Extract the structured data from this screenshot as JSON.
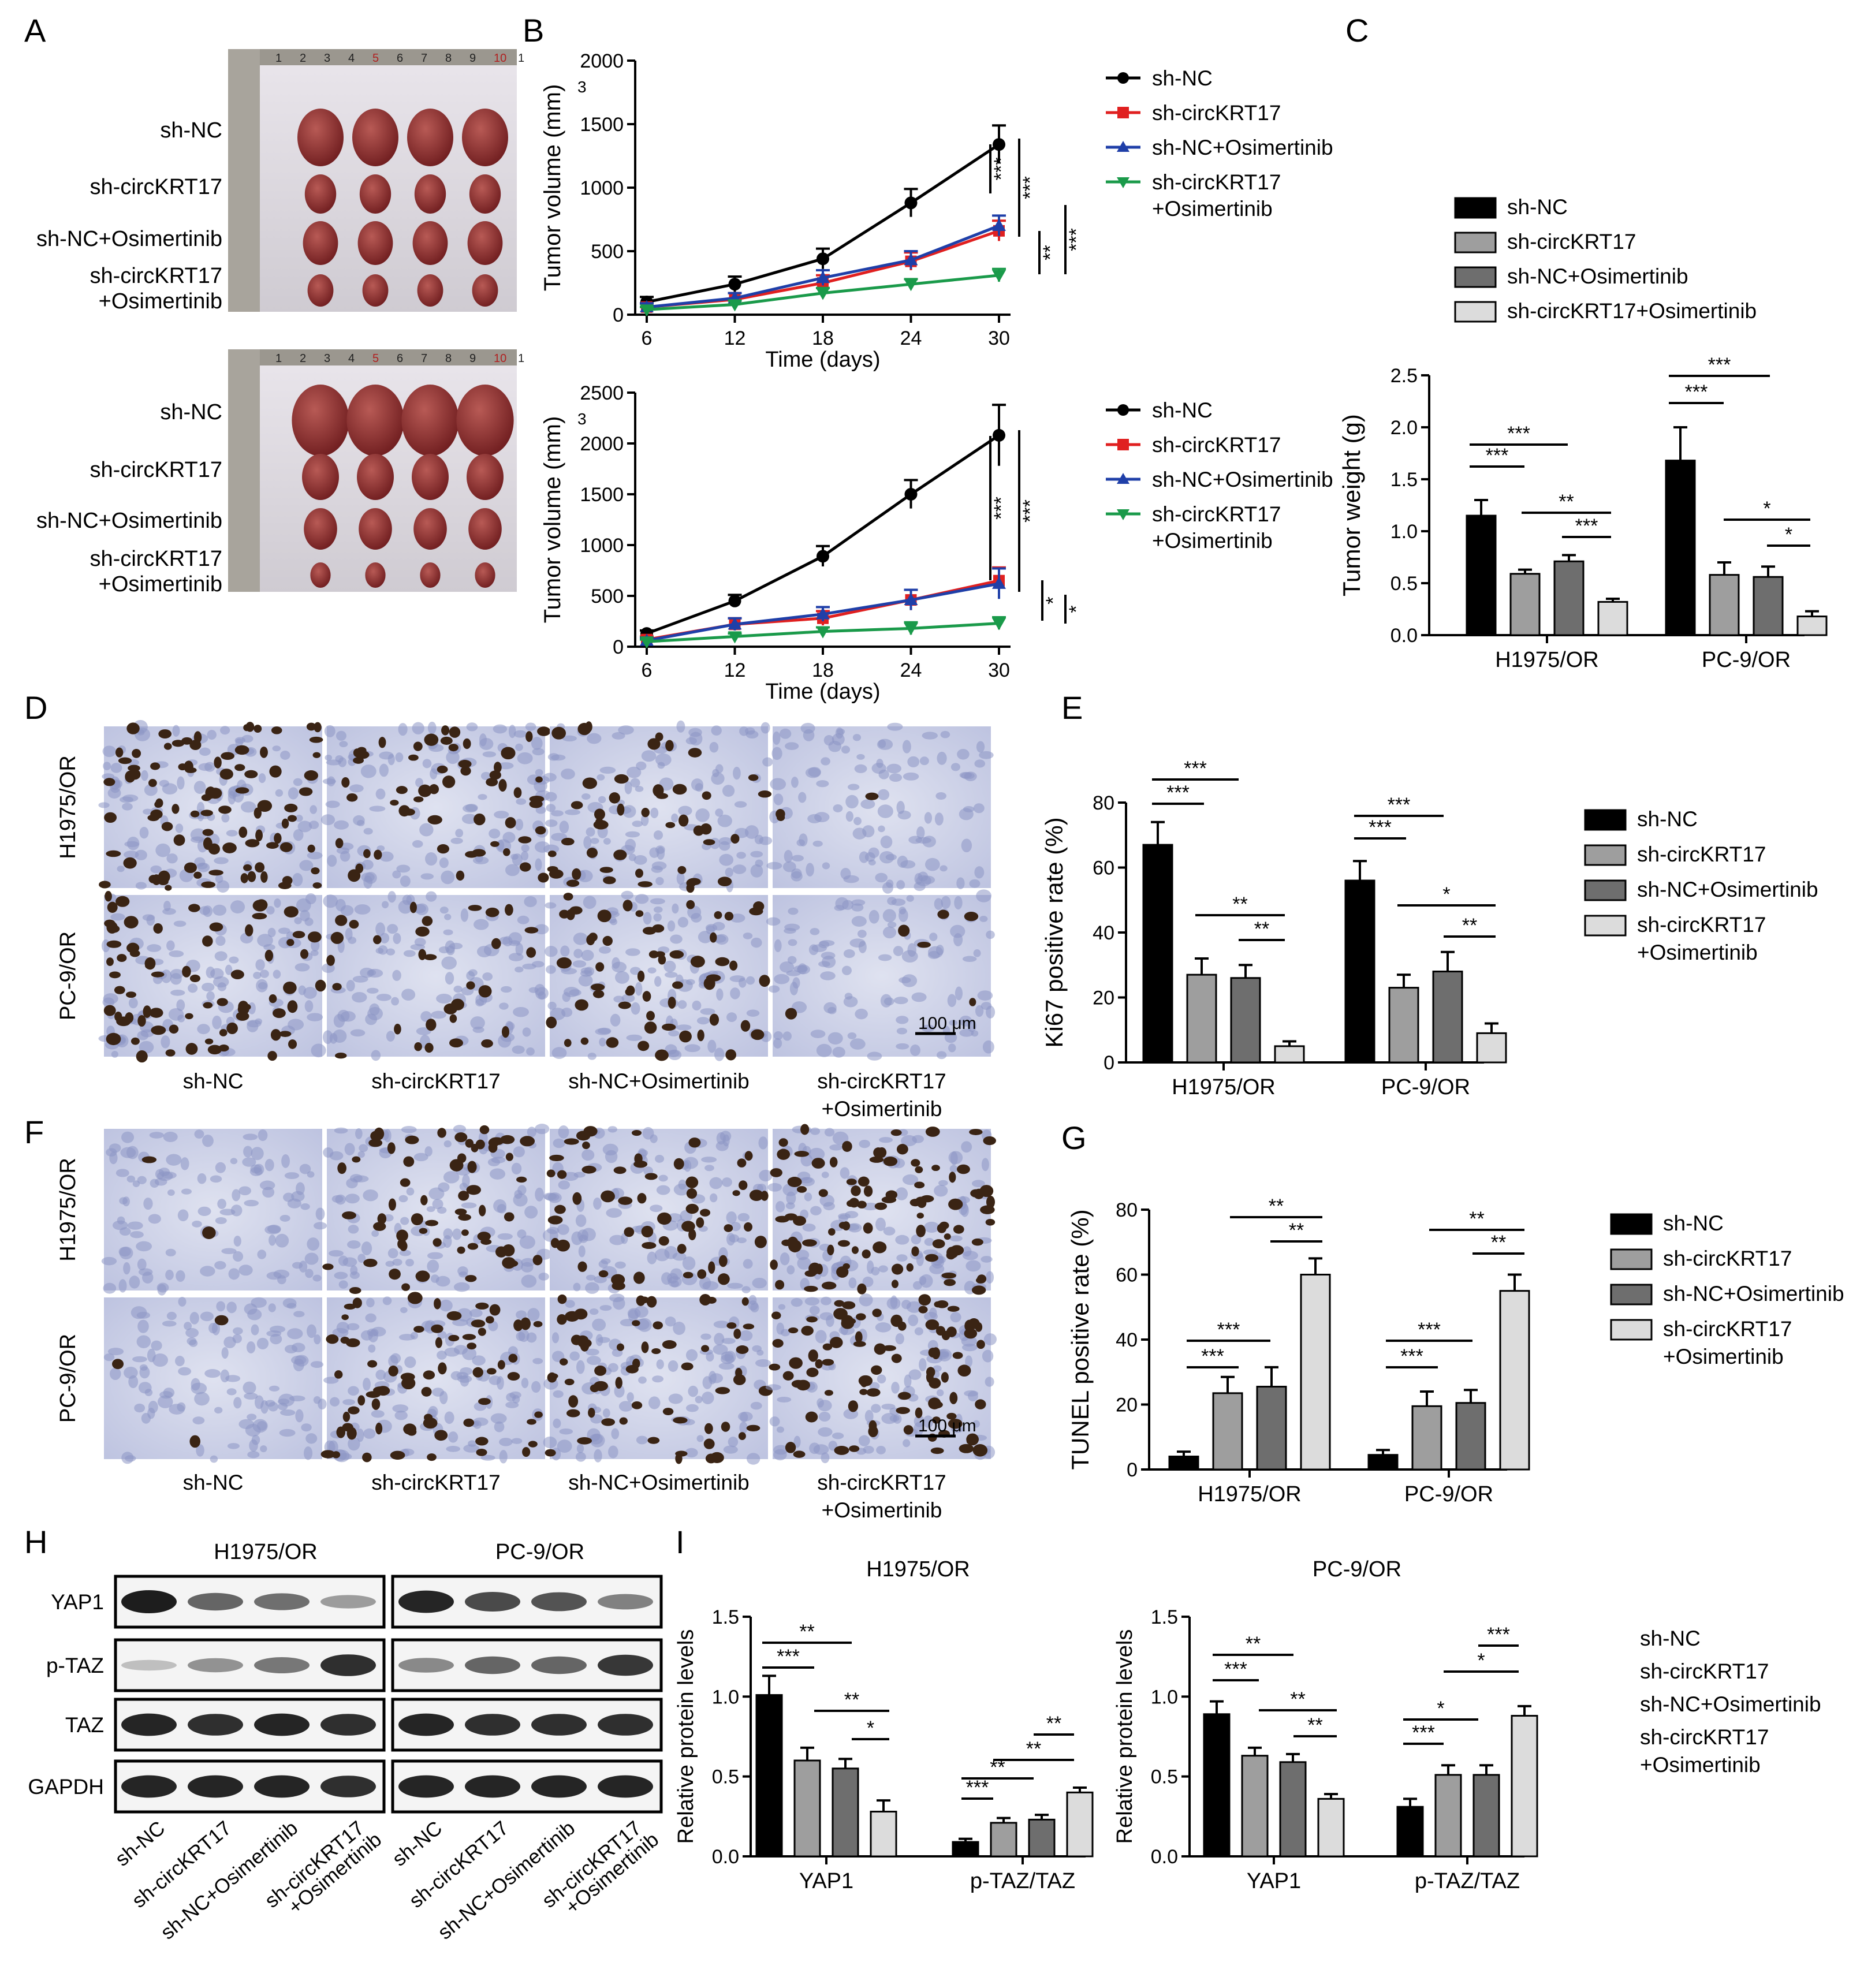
{
  "panels": {
    "A": "A",
    "B": "B",
    "C": "C",
    "D": "D",
    "E": "E",
    "F": "F",
    "G": "G",
    "H": "H",
    "I": "I"
  },
  "colors": {
    "shNC": "#000000",
    "shCirc": "#e02020",
    "shNCOsi": "#1f3fa8",
    "shCircOsi": "#1a9a4a",
    "bar1": "#000000",
    "bar2": "#9e9e9e",
    "bar3": "#6e6e6e",
    "bar4": "#dcdcdc",
    "tissue": "#8a2a2a",
    "ihc_bg": "#c9cfe6"
  },
  "groups": [
    "sh-NC",
    "sh-circKRT17",
    "sh-NC+Osimertinib",
    "sh-circKRT17\n+Osimertinib"
  ],
  "groups_flat": [
    "sh-NC",
    "sh-circKRT17",
    "sh-NC+Osimertinib",
    "sh-circKRT17+Osimertinib"
  ],
  "panelA": {
    "rows": [
      "sh-NC",
      "sh-circKRT17",
      "sh-NC+Osimertinib",
      "sh-circKRT17\n+Osimertinib"
    ]
  },
  "chart_data": [
    {
      "id": "B1",
      "type": "line",
      "xlabel": "Time (days)",
      "ylabel": "Tumor volume (mm3)",
      "x": [
        6,
        12,
        18,
        24,
        30
      ],
      "xlim": [
        6,
        30
      ],
      "ylim": [
        0,
        2000
      ],
      "yticks": [
        0,
        500,
        1000,
        1500,
        2000
      ],
      "series": [
        {
          "name": "sh-NC",
          "values": [
            100,
            240,
            440,
            880,
            1340
          ],
          "err": [
            40,
            60,
            80,
            110,
            150
          ]
        },
        {
          "name": "sh-circKRT17",
          "values": [
            60,
            120,
            250,
            420,
            660
          ],
          "err": [
            30,
            50,
            60,
            70,
            80
          ]
        },
        {
          "name": "sh-NC+Osimertinib",
          "values": [
            60,
            130,
            290,
            430,
            700
          ],
          "err": [
            30,
            40,
            60,
            70,
            80
          ]
        },
        {
          "name": "sh-circKRT17+Osimertinib",
          "values": [
            40,
            80,
            170,
            240,
            310
          ],
          "err": [
            20,
            30,
            40,
            40,
            50
          ]
        }
      ],
      "significance": [
        "***",
        "***",
        "**",
        "***"
      ]
    },
    {
      "id": "B2",
      "type": "line",
      "xlabel": "Time (days)",
      "ylabel": "Tumor volume (mm3)",
      "x": [
        6,
        12,
        18,
        24,
        30
      ],
      "xlim": [
        6,
        30
      ],
      "ylim": [
        0,
        2500
      ],
      "yticks": [
        0,
        500,
        1000,
        1500,
        2000,
        2500
      ],
      "series": [
        {
          "name": "sh-NC",
          "values": [
            130,
            450,
            890,
            1500,
            2080
          ],
          "err": [
            30,
            60,
            100,
            140,
            300
          ]
        },
        {
          "name": "sh-circKRT17",
          "values": [
            70,
            220,
            280,
            460,
            650
          ],
          "err": [
            30,
            60,
            70,
            100,
            130
          ]
        },
        {
          "name": "sh-NC+Osimertinib",
          "values": [
            60,
            220,
            320,
            460,
            620
          ],
          "err": [
            30,
            60,
            70,
            100,
            150
          ]
        },
        {
          "name": "sh-circKRT17+Osimertinib",
          "values": [
            50,
            100,
            150,
            180,
            230
          ],
          "err": [
            20,
            30,
            40,
            60,
            60
          ]
        }
      ],
      "significance": [
        "***",
        "***",
        "*",
        "*"
      ]
    },
    {
      "id": "C",
      "type": "bar",
      "ylabel": "Tumor weight (g)",
      "categories": [
        "H1975/OR",
        "PC-9/OR"
      ],
      "ylim": [
        0,
        2.5
      ],
      "yticks": [
        "0.0",
        "0.5",
        "1.0",
        "1.5",
        "2.0",
        "2.5"
      ],
      "series": [
        {
          "name": "sh-NC",
          "values": [
            1.15,
            1.68
          ],
          "err": [
            0.15,
            0.32
          ]
        },
        {
          "name": "sh-circKRT17",
          "values": [
            0.59,
            0.58
          ],
          "err": [
            0.04,
            0.12
          ]
        },
        {
          "name": "sh-NC+Osimertinib",
          "values": [
            0.71,
            0.56
          ],
          "err": [
            0.06,
            0.1
          ]
        },
        {
          "name": "sh-circKRT17+Osimertinib",
          "values": [
            0.32,
            0.18
          ],
          "err": [
            0.03,
            0.05
          ]
        }
      ],
      "significance": [
        "***",
        "***",
        "**",
        "***",
        "***",
        "***",
        "*",
        "*"
      ]
    },
    {
      "id": "E",
      "type": "bar",
      "ylabel": "Ki67 positive rate (%)",
      "categories": [
        "H1975/OR",
        "PC-9/OR"
      ],
      "ylim": [
        0,
        80
      ],
      "yticks": [
        "0",
        "20",
        "40",
        "60",
        "80"
      ],
      "series": [
        {
          "name": "sh-NC",
          "values": [
            67,
            56
          ],
          "err": [
            7,
            6
          ]
        },
        {
          "name": "sh-circKRT17",
          "values": [
            27,
            23
          ],
          "err": [
            5,
            4
          ]
        },
        {
          "name": "sh-NC+Osimertinib",
          "values": [
            26,
            28
          ],
          "err": [
            4,
            6
          ]
        },
        {
          "name": "sh-circKRT17+Osimertinib",
          "values": [
            5,
            9
          ],
          "err": [
            1.5,
            3
          ]
        }
      ],
      "significance": [
        "***",
        "***",
        "**",
        "**",
        "***",
        "***",
        "*",
        "**"
      ]
    },
    {
      "id": "G",
      "type": "bar",
      "ylabel": "TUNEL positive rate (%)",
      "categories": [
        "H1975/OR",
        "PC-9/OR"
      ],
      "ylim": [
        0,
        80
      ],
      "yticks": [
        "0",
        "20",
        "40",
        "60",
        "80"
      ],
      "series": [
        {
          "name": "sh-NC",
          "values": [
            4,
            4.5
          ],
          "err": [
            1.5,
            1.5
          ]
        },
        {
          "name": "sh-circKRT17",
          "values": [
            23.5,
            19.5
          ],
          "err": [
            5,
            4.5
          ]
        },
        {
          "name": "sh-NC+Osimertinib",
          "values": [
            25.5,
            20.5
          ],
          "err": [
            6,
            4
          ]
        },
        {
          "name": "sh-circKRT17+Osimertinib",
          "values": [
            60,
            55
          ],
          "err": [
            5,
            5
          ]
        }
      ],
      "significance": [
        "***",
        "***",
        "**",
        "**",
        "***",
        "***",
        "**",
        "**"
      ]
    },
    {
      "id": "I1",
      "type": "bar",
      "title": "H1975/OR",
      "ylabel": "Relative protein levels",
      "categories": [
        "YAP1",
        "p-TAZ/TAZ"
      ],
      "ylim": [
        0,
        1.5
      ],
      "yticks": [
        "0.0",
        "0.5",
        "1.0",
        "1.5"
      ],
      "series": [
        {
          "name": "sh-NC",
          "values": [
            1.01,
            0.09
          ],
          "err": [
            0.12,
            0.02
          ]
        },
        {
          "name": "sh-circKRT17",
          "values": [
            0.6,
            0.21
          ],
          "err": [
            0.08,
            0.03
          ]
        },
        {
          "name": "sh-NC+Osimertinib",
          "values": [
            0.55,
            0.23
          ],
          "err": [
            0.06,
            0.03
          ]
        },
        {
          "name": "sh-circKRT17+Osimertinib",
          "values": [
            0.28,
            0.4
          ],
          "err": [
            0.07,
            0.03
          ]
        }
      ],
      "significance": [
        "***",
        "**",
        "**",
        "*",
        "***",
        "**",
        "**",
        "**"
      ]
    },
    {
      "id": "I2",
      "type": "bar",
      "title": "PC-9/OR",
      "ylabel": "Relative protein levels",
      "categories": [
        "YAP1",
        "p-TAZ/TAZ"
      ],
      "ylim": [
        0,
        1.5
      ],
      "yticks": [
        "0.0",
        "0.5",
        "1.0",
        "1.5"
      ],
      "series": [
        {
          "name": "sh-NC",
          "values": [
            0.89,
            0.31
          ],
          "err": [
            0.08,
            0.05
          ]
        },
        {
          "name": "sh-circKRT17",
          "values": [
            0.63,
            0.51
          ],
          "err": [
            0.05,
            0.06
          ]
        },
        {
          "name": "sh-NC+Osimertinib",
          "values": [
            0.59,
            0.51
          ],
          "err": [
            0.05,
            0.06
          ]
        },
        {
          "name": "sh-circKRT17+Osimertinib",
          "values": [
            0.36,
            0.88
          ],
          "err": [
            0.03,
            0.06
          ]
        }
      ],
      "significance": [
        "***",
        "**",
        "**",
        "**",
        "***",
        "*",
        "*",
        "***"
      ]
    }
  ],
  "panelD": {
    "rows": [
      "H1975/OR",
      "PC-9/OR"
    ],
    "cols": [
      "sh-NC",
      "sh-circKRT17",
      "sh-NC+Osimertinib",
      "sh-circKRT17\n+Osimertinib"
    ],
    "scale": "100 μm"
  },
  "panelF": {
    "rows": [
      "H1975/OR",
      "PC-9/OR"
    ],
    "cols": [
      "sh-NC",
      "sh-circKRT17",
      "sh-NC+Osimertinib",
      "sh-circKRT17\n+Osimertinib"
    ],
    "scale": "100 μm"
  },
  "panelH": {
    "cells": [
      "H1975/OR",
      "PC-9/OR"
    ],
    "proteins": [
      "YAP1",
      "p-TAZ",
      "TAZ",
      "GAPDH"
    ],
    "lanes": [
      "sh-NC",
      "sh-circKRT17",
      "sh-NC+Osimertinib",
      "sh-circKRT17\n+Osimertinib",
      "sh-NC",
      "sh-circKRT17",
      "sh-NC+Osimertinib",
      "sh-circKRT17\n+Osimertinib"
    ],
    "band_intensity": {
      "H1975/OR": {
        "YAP1": [
          1.0,
          0.6,
          0.55,
          0.3
        ],
        "p-TAZ": [
          0.1,
          0.35,
          0.5,
          0.9
        ],
        "TAZ": [
          0.95,
          0.9,
          0.95,
          0.9
        ],
        "GAPDH": [
          0.95,
          0.95,
          0.95,
          0.9
        ]
      },
      "PC-9/OR": {
        "YAP1": [
          0.95,
          0.75,
          0.7,
          0.45
        ],
        "p-TAZ": [
          0.4,
          0.6,
          0.6,
          0.85
        ],
        "TAZ": [
          0.95,
          0.9,
          0.9,
          0.9
        ],
        "GAPDH": [
          0.95,
          0.95,
          0.95,
          0.95
        ]
      }
    }
  }
}
